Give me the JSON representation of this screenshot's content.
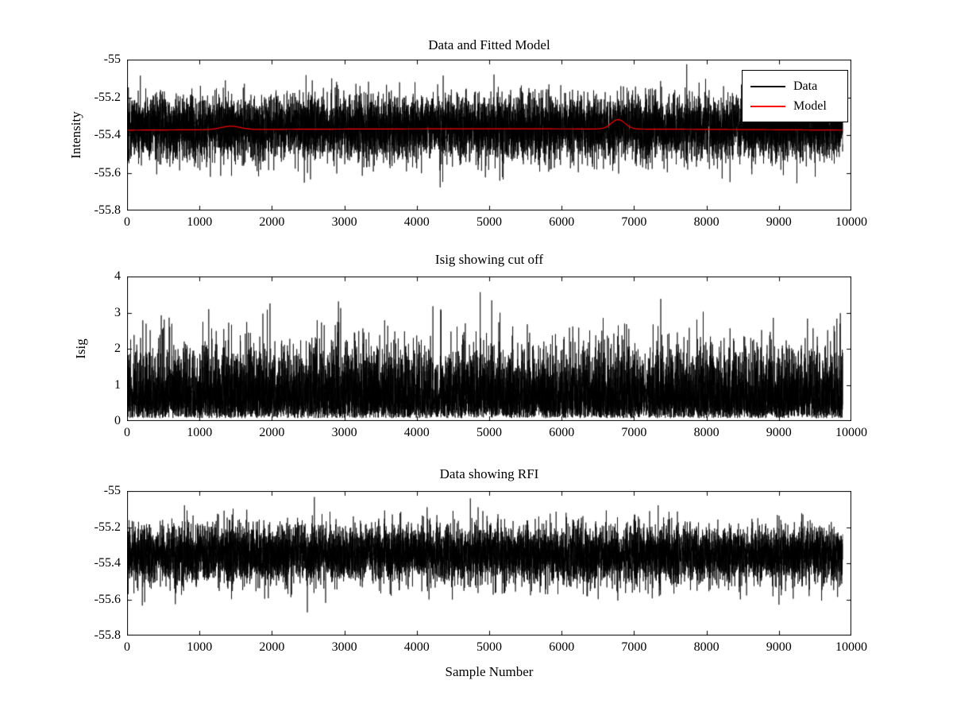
{
  "figure": {
    "background": "#ffffff",
    "data_color": "#000000",
    "model_color": "#ff0000"
  },
  "chart_data": [
    {
      "type": "line",
      "title": "Data and Fitted Model",
      "xlabel": "",
      "ylabel": "Intensity",
      "xlim": [
        0,
        10000
      ],
      "ylim": [
        -55.8,
        -55.0
      ],
      "grid": false,
      "xtick_values": [
        0,
        1000,
        2000,
        3000,
        4000,
        5000,
        6000,
        7000,
        8000,
        9000,
        10000
      ],
      "xtick_labels": [
        "0",
        "1000",
        "2000",
        "3000",
        "4000",
        "5000",
        "6000",
        "7000",
        "8000",
        "9000",
        "10000"
      ],
      "ytick_values": [
        -55.8,
        -55.6,
        -55.4,
        -55.2,
        -55.0
      ],
      "ytick_labels": [
        "-55.8",
        "-55.6",
        "-55.4",
        "-55.2",
        "-55"
      ],
      "legend": {
        "position": "top-right",
        "entries": [
          {
            "label": "Data",
            "color": "#000000"
          },
          {
            "label": "Model",
            "color": "#ff0000"
          }
        ]
      },
      "series": [
        {
          "name": "Data",
          "color": "#000000",
          "kind": "gaussian-noise",
          "n_points": 9900,
          "x_start": 0,
          "x_end": 9880,
          "baseline": -55.36,
          "std": 0.085,
          "seed": 101
        },
        {
          "name": "Model",
          "color": "#ff0000",
          "kind": "smooth-model",
          "x_start": 0,
          "x_end": 9880,
          "baseline": -55.374,
          "slow_amplitude": 0.007,
          "bumps": [
            {
              "center": 1430,
              "amplitude": 0.018,
              "width": 130
            },
            {
              "center": 6780,
              "amplitude": 0.05,
              "width": 95
            }
          ]
        }
      ]
    },
    {
      "type": "line",
      "title": "Isig showing cut off",
      "xlabel": "",
      "ylabel": "Isig",
      "xlim": [
        0,
        10000
      ],
      "ylim": [
        0,
        4
      ],
      "grid": false,
      "xtick_values": [
        0,
        1000,
        2000,
        3000,
        4000,
        5000,
        6000,
        7000,
        8000,
        9000,
        10000
      ],
      "xtick_labels": [
        "0",
        "1000",
        "2000",
        "3000",
        "4000",
        "5000",
        "6000",
        "7000",
        "8000",
        "9000",
        "10000"
      ],
      "ytick_values": [
        0,
        1,
        2,
        3,
        4
      ],
      "ytick_labels": [
        "0",
        "1",
        "2",
        "3",
        "4"
      ],
      "series": [
        {
          "name": "Isig",
          "color": "#000000",
          "kind": "rectified-noise",
          "n_points": 9900,
          "x_start": 0,
          "x_end": 9880,
          "cutoff": 0.08,
          "scale": 0.9,
          "seed": 202
        }
      ]
    },
    {
      "type": "line",
      "title": "Data showing RFI",
      "xlabel": "Sample Number",
      "ylabel": "",
      "xlim": [
        0,
        10000
      ],
      "ylim": [
        -55.8,
        -55.0
      ],
      "grid": false,
      "xtick_values": [
        0,
        1000,
        2000,
        3000,
        4000,
        5000,
        6000,
        7000,
        8000,
        9000,
        10000
      ],
      "xtick_labels": [
        "0",
        "1000",
        "2000",
        "3000",
        "4000",
        "5000",
        "6000",
        "7000",
        "8000",
        "9000",
        "10000"
      ],
      "ytick_values": [
        -55.8,
        -55.6,
        -55.4,
        -55.2,
        -55.0
      ],
      "ytick_labels": [
        "-55.8",
        "-55.6",
        "-55.4",
        "-55.2",
        "-55"
      ],
      "series": [
        {
          "name": "Data",
          "color": "#000000",
          "kind": "gaussian-noise",
          "n_points": 9900,
          "x_start": 0,
          "x_end": 9880,
          "baseline": -55.35,
          "std": 0.08,
          "seed": 303
        }
      ]
    }
  ]
}
